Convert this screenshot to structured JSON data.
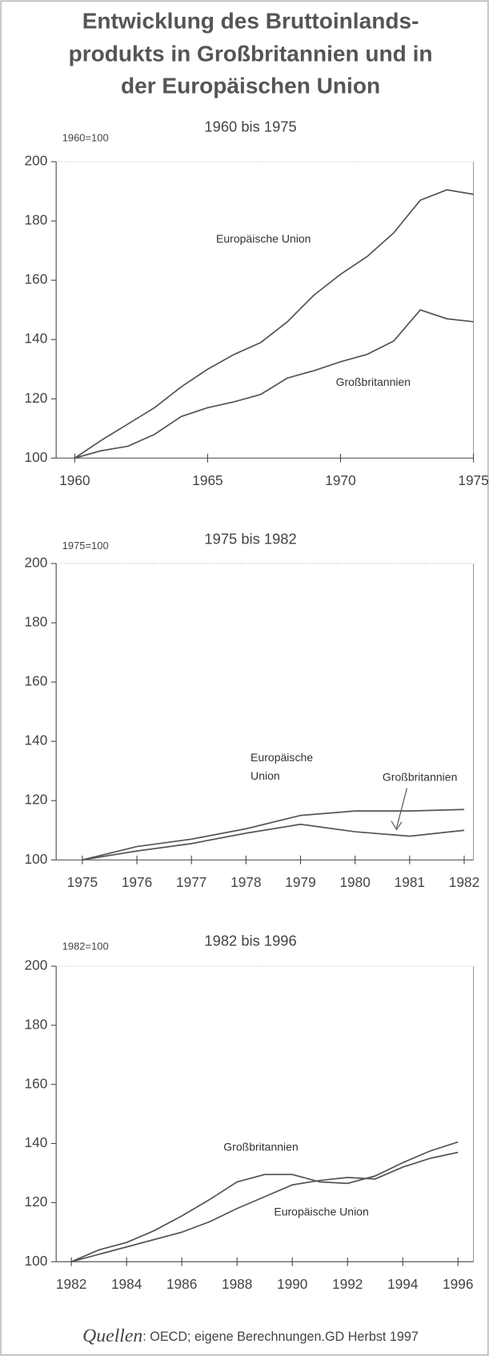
{
  "title": [
    "Entwicklung des Bruttoinlands-",
    "produkts in Großbritannien und in",
    "der Europäischen Union"
  ],
  "chart_data": [
    {
      "type": "line",
      "title": "1960 bis 1975",
      "index_label": "1960=100",
      "x": [
        1960,
        1961,
        1962,
        1963,
        1964,
        1965,
        1966,
        1967,
        1968,
        1969,
        1970,
        1971,
        1972,
        1973,
        1974,
        1975
      ],
      "series": [
        {
          "name": "Europäische Union",
          "color": "#555555",
          "values": [
            100,
            106,
            111.5,
            117,
            124,
            130,
            135,
            139,
            146,
            155,
            162,
            168,
            176,
            187,
            190.5,
            189
          ]
        },
        {
          "name": "Großbritannien",
          "color": "#555555",
          "values": [
            100,
            102.5,
            104,
            108,
            114,
            117,
            119,
            121.5,
            127,
            129.5,
            132.5,
            135,
            139.5,
            150,
            147,
            146
          ]
        }
      ],
      "xlim": [
        1959.3,
        1975
      ],
      "xticks": [
        1960,
        1965,
        1970,
        1975
      ],
      "ylim": [
        100,
        200
      ],
      "yticks": [
        100,
        120,
        140,
        160,
        180,
        200
      ]
    },
    {
      "type": "line",
      "title": "1975 bis 1982",
      "index_label": "1975=100",
      "x": [
        1975,
        1976,
        1977,
        1978,
        1979,
        1980,
        1981,
        1982
      ],
      "series": [
        {
          "name": "Europäische Union",
          "color": "#555555",
          "values": [
            100,
            104.5,
            107,
            110.5,
            115,
            116.5,
            116.5,
            117
          ]
        },
        {
          "name": "Großbritannien",
          "color": "#555555",
          "values": [
            100,
            103,
            105.5,
            109,
            112,
            109.5,
            108,
            110
          ]
        }
      ],
      "xlim": [
        1974.52,
        1982.17
      ],
      "xticks": [
        1975,
        1976,
        1977,
        1978,
        1979,
        1980,
        1981,
        1982
      ],
      "ylim": [
        100,
        200
      ],
      "yticks": [
        100,
        120,
        140,
        160,
        180,
        200
      ]
    },
    {
      "type": "line",
      "title": "1982 bis 1996",
      "index_label": "1982=100",
      "x": [
        1982,
        1983,
        1984,
        1985,
        1986,
        1987,
        1988,
        1989,
        1990,
        1991,
        1992,
        1993,
        1994,
        1995,
        1996
      ],
      "series": [
        {
          "name": "Großbritannien",
          "color": "#555555",
          "values": [
            100,
            104,
            106.5,
            110.5,
            115.5,
            121,
            127,
            129.5,
            129.5,
            127,
            126.5,
            129,
            133.5,
            137.5,
            140.5
          ]
        },
        {
          "name": "Europäische Union",
          "color": "#555555",
          "values": [
            100,
            102.5,
            105,
            107.5,
            110,
            113.5,
            118,
            122,
            126,
            127.5,
            128.5,
            128,
            132,
            135,
            137
          ]
        }
      ],
      "xlim": [
        1981.45,
        1996.56
      ],
      "xticks": [
        1982,
        1984,
        1986,
        1988,
        1990,
        1992,
        1994,
        1996
      ],
      "ylim": [
        100,
        200
      ],
      "yticks": [
        100,
        120,
        140,
        160,
        180,
        200
      ]
    }
  ],
  "source_label": "Quellen",
  "source": ": OECD; eigene Berechnungen.GD Herbst 1997"
}
